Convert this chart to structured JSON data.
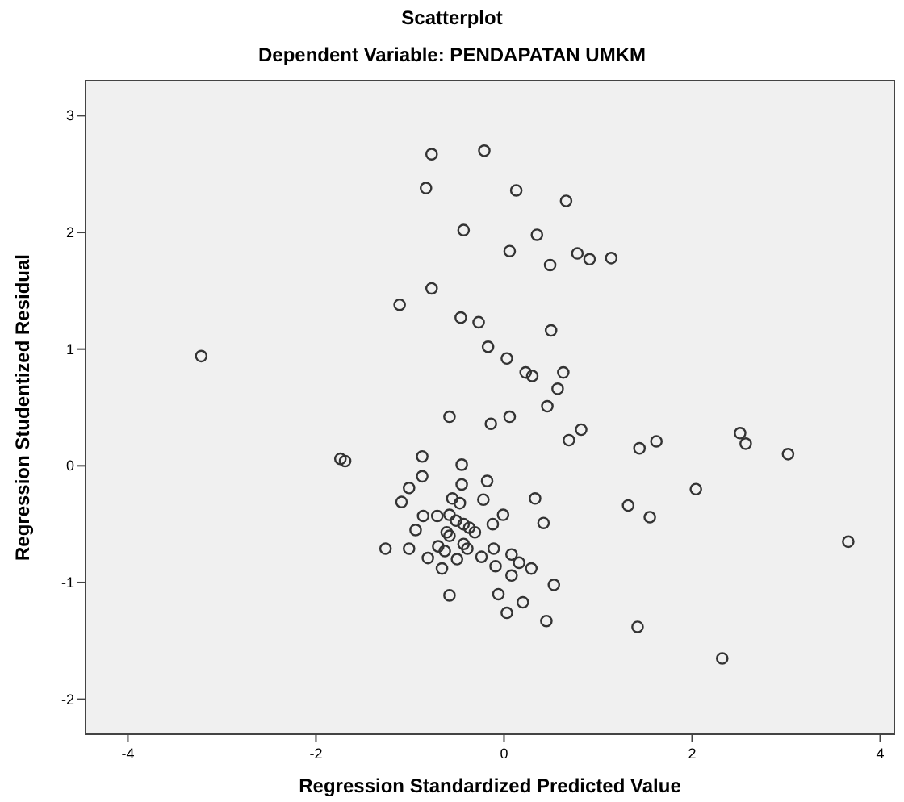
{
  "chart_data": {
    "type": "scatter",
    "title": "Scatterplot",
    "subtitle": "Dependent Variable: PENDAPATAN UMKM",
    "xlabel": "Regression Standardized Predicted Value",
    "ylabel": "Regression Studentized Residual",
    "xlim": [
      -4.45,
      4.15
    ],
    "ylim": [
      -2.3,
      3.3
    ],
    "xticks": [
      -4,
      -2,
      0,
      2,
      4
    ],
    "yticks": [
      -2,
      -1,
      0,
      1,
      2,
      3
    ],
    "grid": false,
    "marker": "circle",
    "series": [
      {
        "color": "#333333",
        "x": [
          -0.77,
          -0.21,
          -0.83,
          0.13,
          0.66,
          -0.43,
          0.35,
          0.06,
          0.78,
          0.91,
          1.14,
          0.49,
          -0.77,
          -1.11,
          -0.46,
          -0.27,
          0.5,
          -0.17,
          0.03,
          -3.22,
          0.23,
          0.3,
          0.63,
          0.57,
          0.46,
          -0.58,
          0.06,
          -0.14,
          0.82,
          0.69,
          1.44,
          1.62,
          2.51,
          2.57,
          3.02,
          -1.74,
          -1.69,
          -0.87,
          -0.45,
          -0.87,
          -1.01,
          -0.45,
          -0.18,
          2.04,
          -1.09,
          -0.55,
          -0.47,
          -0.22,
          0.33,
          1.32,
          -0.86,
          -0.71,
          -0.58,
          -0.51,
          -0.43,
          -0.37,
          -0.31,
          -0.12,
          -0.01,
          0.42,
          1.55,
          -0.94,
          -0.61,
          -0.58,
          -0.43,
          -0.39,
          -1.26,
          -1.01,
          -0.7,
          -0.63,
          -0.81,
          -0.5,
          -0.24,
          -0.11,
          0.08,
          0.16,
          0.29,
          -0.66,
          -0.09,
          0.08,
          0.53,
          -0.58,
          -0.06,
          0.2,
          0.03,
          0.45,
          1.42,
          2.32,
          3.66
        ],
        "values": [
          2.67,
          2.7,
          2.38,
          2.36,
          2.27,
          2.02,
          1.98,
          1.84,
          1.82,
          1.77,
          1.78,
          1.72,
          1.52,
          1.38,
          1.27,
          1.23,
          1.16,
          1.02,
          0.92,
          0.94,
          0.8,
          0.77,
          0.8,
          0.66,
          0.51,
          0.42,
          0.42,
          0.36,
          0.31,
          0.22,
          0.15,
          0.21,
          0.28,
          0.19,
          0.1,
          0.06,
          0.04,
          0.08,
          0.01,
          -0.09,
          -0.19,
          -0.16,
          -0.13,
          -0.2,
          -0.31,
          -0.28,
          -0.32,
          -0.29,
          -0.28,
          -0.34,
          -0.43,
          -0.43,
          -0.42,
          -0.47,
          -0.5,
          -0.53,
          -0.57,
          -0.5,
          -0.42,
          -0.49,
          -0.44,
          -0.55,
          -0.57,
          -0.6,
          -0.67,
          -0.71,
          -0.71,
          -0.71,
          -0.69,
          -0.73,
          -0.79,
          -0.8,
          -0.78,
          -0.71,
          -0.76,
          -0.83,
          -0.88,
          -0.88,
          -0.86,
          -0.94,
          -1.02,
          -1.11,
          -1.1,
          -1.17,
          -1.26,
          -1.33,
          -1.38,
          -1.65,
          -0.65
        ]
      }
    ]
  }
}
